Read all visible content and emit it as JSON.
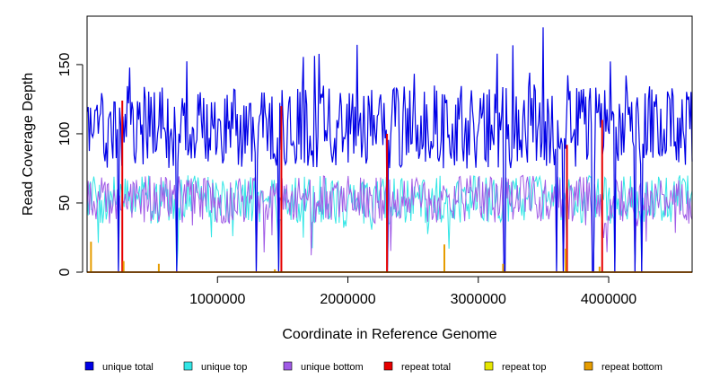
{
  "chart_data": {
    "type": "line",
    "title": "",
    "xlabel": "Coordinate in Reference Genome",
    "ylabel": "Read Coverage Depth",
    "xlim": [
      1,
      4640000
    ],
    "ylim": [
      0,
      185
    ],
    "x_ticks": [
      1000000,
      2000000,
      3000000,
      4000000
    ],
    "x_tick_labels": [
      "1000000",
      "2000000",
      "3000000",
      "4000000"
    ],
    "y_ticks": [
      0,
      50,
      100,
      150
    ],
    "y_tick_labels": [
      "0",
      "50",
      "100",
      "150"
    ],
    "grid": false,
    "legend_position": "bottom",
    "series": [
      {
        "name": "unique total",
        "color": "#0000E6",
        "typical_range": [
          75,
          135
        ],
        "peak": 177
      },
      {
        "name": "unique top",
        "color": "#33E6E6",
        "typical_range": [
          35,
          70
        ]
      },
      {
        "name": "unique bottom",
        "color": "#A05AE6",
        "typical_range": [
          35,
          70
        ]
      },
      {
        "name": "repeat total",
        "color": "#E60000",
        "typical_range": [
          0,
          0
        ],
        "spikes": [
          {
            "x": 270000,
            "y": 124
          },
          {
            "x": 1490000,
            "y": 120
          },
          {
            "x": 2300000,
            "y": 100
          },
          {
            "x": 3680000,
            "y": 92
          },
          {
            "x": 3950000,
            "y": 110
          }
        ]
      },
      {
        "name": "repeat top",
        "color": "#E6E600",
        "typical_range": [
          0,
          0
        ]
      },
      {
        "name": "repeat bottom",
        "color": "#E69C00",
        "typical_range": [
          0,
          0
        ],
        "spikes": [
          {
            "x": 30000,
            "y": 22
          },
          {
            "x": 280000,
            "y": 8
          },
          {
            "x": 550000,
            "y": 6
          },
          {
            "x": 1440000,
            "y": 2
          },
          {
            "x": 2740000,
            "y": 20
          },
          {
            "x": 3190000,
            "y": 6
          },
          {
            "x": 3670000,
            "y": 17
          },
          {
            "x": 3930000,
            "y": 4
          }
        ]
      }
    ],
    "dropouts": [
      {
        "x": 240000,
        "y": 0
      },
      {
        "x": 690000,
        "y": 0
      },
      {
        "x": 1300000,
        "y": 0
      },
      {
        "x": 1470000,
        "y": 0
      },
      {
        "x": 2300000,
        "y": 0
      },
      {
        "x": 3200000,
        "y": 0
      },
      {
        "x": 3600000,
        "y": 0
      },
      {
        "x": 3650000,
        "y": 0
      },
      {
        "x": 3880000,
        "y": 0
      },
      {
        "x": 4050000,
        "y": 0
      },
      {
        "x": 4200000,
        "y": 0
      },
      {
        "x": 4250000,
        "y": 0
      }
    ]
  }
}
